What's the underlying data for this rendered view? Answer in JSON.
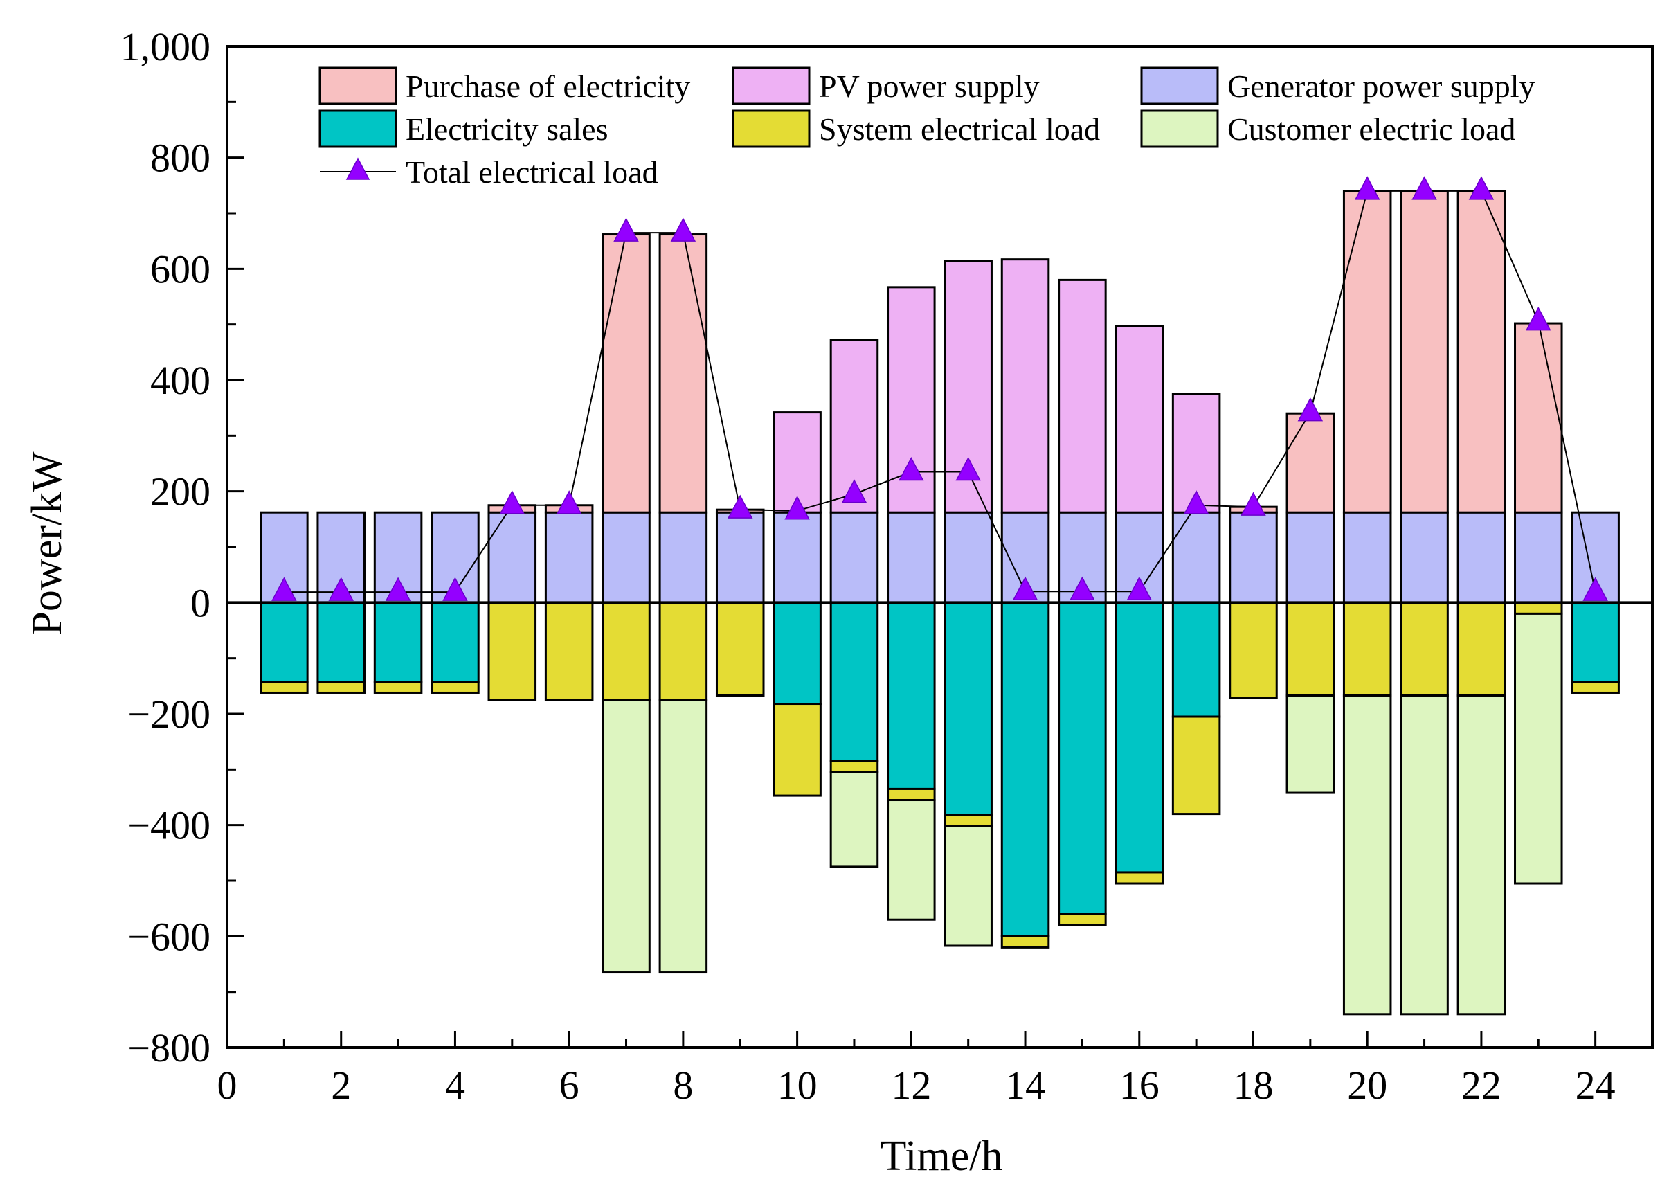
{
  "chart_data": {
    "type": "bar",
    "stacked": true,
    "title": "",
    "xlabel": "Time/h",
    "ylabel": "Power/kW",
    "xlim": [
      0,
      25
    ],
    "ylim": [
      -800,
      1000
    ],
    "xticks": [
      0,
      2,
      4,
      6,
      8,
      10,
      12,
      14,
      16,
      18,
      20,
      22,
      24
    ],
    "xtick_labels": [
      "0",
      "2",
      "4",
      "6",
      "8",
      "10",
      "12",
      "14",
      "16",
      "18",
      "20",
      "22",
      "24"
    ],
    "yticks": [
      -800,
      -600,
      -400,
      -200,
      0,
      200,
      400,
      600,
      800,
      1000
    ],
    "ytick_labels": [
      "−800",
      "−600",
      "−400",
      "−200",
      "0",
      "200",
      "400",
      "600",
      "800",
      "1,000"
    ],
    "legend_position": "top",
    "x": [
      1,
      2,
      3,
      4,
      5,
      6,
      7,
      8,
      9,
      10,
      11,
      12,
      13,
      14,
      15,
      16,
      17,
      18,
      19,
      20,
      21,
      22,
      23,
      24
    ],
    "series": [
      {
        "name": "Generator power supply",
        "color": "#b9bcf9",
        "sign": "positive",
        "values": [
          162,
          162,
          162,
          162,
          162,
          162,
          162,
          162,
          162,
          162,
          162,
          162,
          162,
          162,
          162,
          162,
          162,
          162,
          162,
          162,
          162,
          162,
          162,
          162
        ]
      },
      {
        "name": "Purchase of electricity",
        "color": "#f8c0c1",
        "sign": "positive",
        "values": [
          0,
          0,
          0,
          0,
          13,
          13,
          500,
          500,
          5,
          0,
          0,
          0,
          0,
          0,
          0,
          0,
          0,
          10,
          178,
          578,
          578,
          578,
          340,
          0
        ]
      },
      {
        "name": "PV power supply",
        "color": "#eeb1f4",
        "sign": "positive",
        "values": [
          0,
          0,
          0,
          0,
          0,
          0,
          0,
          0,
          0,
          180,
          310,
          405,
          452,
          455,
          418,
          335,
          213,
          0,
          0,
          0,
          0,
          0,
          0,
          0
        ]
      },
      {
        "name": "Electricity sales",
        "color": "#00c5c5",
        "sign": "negative",
        "values": [
          -143,
          -143,
          -143,
          -143,
          0,
          0,
          0,
          0,
          0,
          -182,
          -285,
          -335,
          -382,
          -600,
          -560,
          -485,
          -205,
          0,
          0,
          0,
          0,
          0,
          0,
          -143
        ]
      },
      {
        "name": "System electrical load",
        "color": "#e4dc34",
        "sign": "negative",
        "values": [
          -19,
          -19,
          -19,
          -19,
          -175,
          -175,
          -175,
          -175,
          -167,
          -165,
          -20,
          -20,
          -20,
          -20,
          -20,
          -20,
          -175,
          -172,
          -167,
          -167,
          -167,
          -167,
          -20,
          -19
        ]
      },
      {
        "name": "Customer electric load",
        "color": "#ddf5c0",
        "sign": "negative",
        "values": [
          0,
          0,
          0,
          0,
          0,
          0,
          -490,
          -490,
          0,
          0,
          -170,
          -215,
          -215,
          0,
          0,
          0,
          0,
          0,
          -175,
          -573,
          -573,
          -573,
          -485,
          0
        ]
      },
      {
        "name": "Total electrical load",
        "type": "line",
        "color": "#9400ff",
        "marker": "triangle",
        "values": [
          19,
          19,
          19,
          19,
          175,
          175,
          665,
          665,
          167,
          165,
          195,
          235,
          235,
          20,
          20,
          20,
          175,
          172,
          342,
          740,
          740,
          740,
          505,
          19
        ]
      }
    ],
    "legend": {
      "rows": [
        [
          "Purchase of electricity",
          "PV power supply",
          "Generator power supply"
        ],
        [
          "Electricity sales",
          "System electrical load",
          "Customer electric load"
        ],
        [
          "Total electrical load"
        ]
      ]
    }
  }
}
